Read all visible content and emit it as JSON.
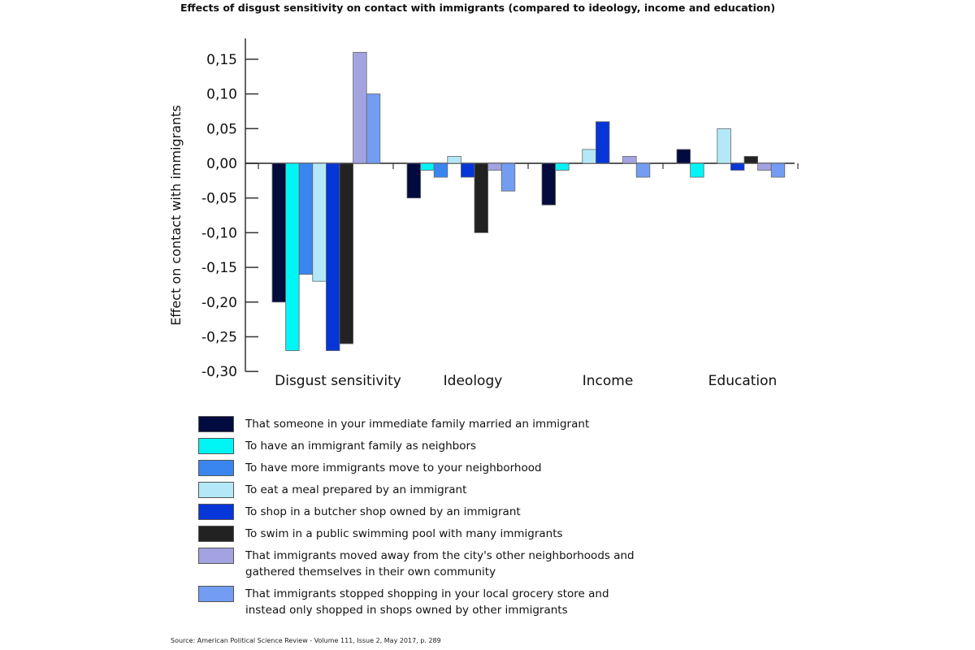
{
  "chart_data": {
    "type": "bar",
    "title": "Effects of disgust sensitivity on contact with immigrants (compared to ideology, income and education)",
    "ylabel": "Effect on contact with immigrants",
    "xlabel": "",
    "ylim": [
      -0.3,
      0.18
    ],
    "yticks": [
      "0,15",
      "0,10",
      "0,05",
      "0,00",
      "-0,05",
      "-0,10",
      "-0,15",
      "-0,20",
      "-0,25",
      "-0,30"
    ],
    "ytick_values": [
      0.15,
      0.1,
      0.05,
      0.0,
      -0.05,
      -0.1,
      -0.15,
      -0.2,
      -0.25,
      -0.3
    ],
    "categories": [
      "Disgust sensitivity",
      "Ideology",
      "Income",
      "Education"
    ],
    "grid": false,
    "legend_position": "bottom",
    "series": [
      {
        "name": "That someone in your immediate family married an immigrant",
        "color": "#020b3e",
        "values": [
          -0.2,
          -0.05,
          -0.06,
          0.02
        ]
      },
      {
        "name": "To have an immigrant family as neighbors",
        "color": "#00f5f5",
        "values": [
          -0.27,
          -0.01,
          -0.01,
          -0.02
        ]
      },
      {
        "name": "To have more immigrants move to your neighborhood",
        "color": "#3a86f0",
        "values": [
          -0.16,
          -0.02,
          0.0,
          0.0
        ]
      },
      {
        "name": "To eat a meal prepared by an immigrant",
        "color": "#b4e8f8",
        "values": [
          -0.17,
          0.01,
          0.02,
          0.05
        ]
      },
      {
        "name": "To shop in a butcher shop owned by an immigrant",
        "color": "#0636d8",
        "values": [
          -0.27,
          -0.02,
          0.06,
          -0.01
        ]
      },
      {
        "name": "To swim in a public swimming pool with many immigrants",
        "color": "#222222",
        "values": [
          -0.26,
          -0.1,
          0.0,
          0.01
        ]
      },
      {
        "name": "That immigrants moved away from the city's other neighborhoods and gathered themselves in their own community",
        "color": "#a3a3e2",
        "values": [
          0.16,
          -0.01,
          0.01,
          -0.01
        ]
      },
      {
        "name": "That immigrants stopped shopping in your local grocery store and instead only shopped in shops owned by other immigrants",
        "color": "#729df2",
        "values": [
          0.1,
          -0.04,
          -0.02,
          -0.02
        ]
      }
    ],
    "source": "Source: American Political Science Review - Volume 111, Issue 2, May 2017, p. 289"
  }
}
